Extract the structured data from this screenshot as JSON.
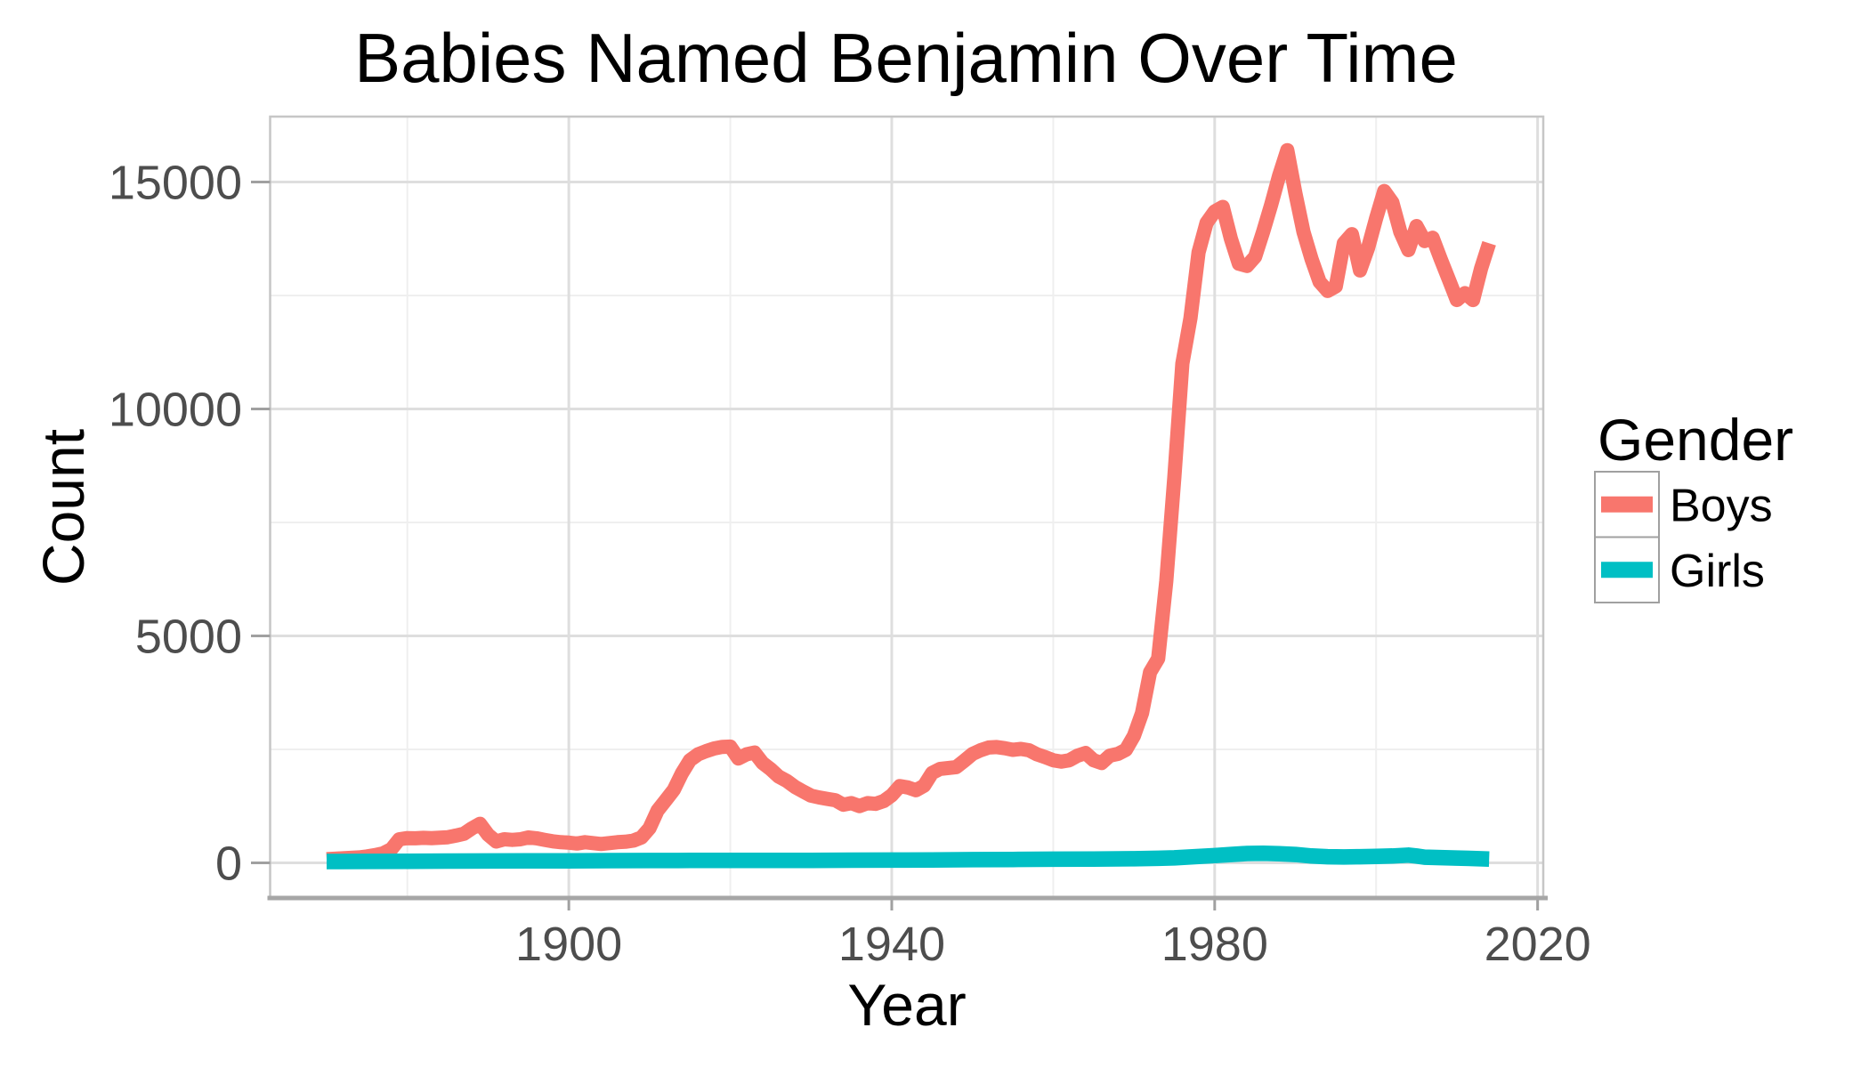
{
  "title": "Babies Named Benjamin Over Time",
  "colors": {
    "boys_line": "#F8766D",
    "girls_line": "#00BFC4",
    "axis_text": "#4D4D4D",
    "title_text": "#000000",
    "grid_major": "#DEDEDE",
    "grid_minor": "#EFEFEF",
    "panel_border": "#C6C6C6",
    "axis_line": "#A6A6A6",
    "background": "#FFFFFF"
  },
  "chart_data": {
    "type": "line",
    "title": "Babies Named Benjamin Over Time",
    "xlabel": "Year",
    "ylabel": "Count",
    "legend_title": "Gender",
    "legend_position": "right",
    "grid": true,
    "x_ticks": [
      1900,
      1940,
      1980,
      2020
    ],
    "x_minor_ticks": [
      1880,
      1920,
      1960,
      2000
    ],
    "y_ticks": [
      0,
      5000,
      10000,
      15000
    ],
    "y_minor_ticks": [
      2500,
      7500,
      12500
    ],
    "xlim": [
      1863.0,
      2020.7
    ],
    "ylim": [
      -765,
      16441
    ],
    "series": [
      {
        "name": "Boys",
        "color": "#F8766D",
        "line_width": 16,
        "points": [
          [
            1870,
            80
          ],
          [
            1871,
            90
          ],
          [
            1872,
            100
          ],
          [
            1873,
            110
          ],
          [
            1874,
            120
          ],
          [
            1875,
            140
          ],
          [
            1876,
            170
          ],
          [
            1877,
            210
          ],
          [
            1878,
            300
          ],
          [
            1879,
            520
          ],
          [
            1880,
            545
          ],
          [
            1881,
            540
          ],
          [
            1882,
            550
          ],
          [
            1883,
            545
          ],
          [
            1884,
            555
          ],
          [
            1885,
            565
          ],
          [
            1886,
            600
          ],
          [
            1887,
            640
          ],
          [
            1888,
            760
          ],
          [
            1889,
            860
          ],
          [
            1890,
            620
          ],
          [
            1891,
            470
          ],
          [
            1892,
            520
          ],
          [
            1893,
            505
          ],
          [
            1894,
            520
          ],
          [
            1895,
            560
          ],
          [
            1896,
            540
          ],
          [
            1897,
            505
          ],
          [
            1898,
            475
          ],
          [
            1899,
            455
          ],
          [
            1900,
            445
          ],
          [
            1901,
            425
          ],
          [
            1902,
            455
          ],
          [
            1903,
            435
          ],
          [
            1904,
            415
          ],
          [
            1905,
            435
          ],
          [
            1906,
            455
          ],
          [
            1907,
            465
          ],
          [
            1908,
            490
          ],
          [
            1909,
            560
          ],
          [
            1910,
            765
          ],
          [
            1911,
            1155
          ],
          [
            1912,
            1380
          ],
          [
            1913,
            1610
          ],
          [
            1914,
            1970
          ],
          [
            1915,
            2260
          ],
          [
            1916,
            2390
          ],
          [
            1917,
            2460
          ],
          [
            1918,
            2520
          ],
          [
            1919,
            2555
          ],
          [
            1920,
            2560
          ],
          [
            1921,
            2300
          ],
          [
            1922,
            2390
          ],
          [
            1923,
            2430
          ],
          [
            1924,
            2200
          ],
          [
            1925,
            2065
          ],
          [
            1926,
            1900
          ],
          [
            1927,
            1805
          ],
          [
            1928,
            1675
          ],
          [
            1929,
            1575
          ],
          [
            1930,
            1480
          ],
          [
            1931,
            1440
          ],
          [
            1932,
            1410
          ],
          [
            1933,
            1380
          ],
          [
            1934,
            1280
          ],
          [
            1935,
            1315
          ],
          [
            1936,
            1250
          ],
          [
            1937,
            1315
          ],
          [
            1938,
            1300
          ],
          [
            1939,
            1360
          ],
          [
            1940,
            1490
          ],
          [
            1941,
            1690
          ],
          [
            1942,
            1660
          ],
          [
            1943,
            1600
          ],
          [
            1944,
            1700
          ],
          [
            1945,
            1980
          ],
          [
            1946,
            2070
          ],
          [
            1947,
            2090
          ],
          [
            1948,
            2110
          ],
          [
            1949,
            2250
          ],
          [
            1950,
            2400
          ],
          [
            1951,
            2480
          ],
          [
            1952,
            2540
          ],
          [
            1953,
            2550
          ],
          [
            1954,
            2525
          ],
          [
            1955,
            2490
          ],
          [
            1956,
            2510
          ],
          [
            1957,
            2480
          ],
          [
            1958,
            2390
          ],
          [
            1959,
            2330
          ],
          [
            1960,
            2260
          ],
          [
            1961,
            2230
          ],
          [
            1962,
            2260
          ],
          [
            1963,
            2360
          ],
          [
            1964,
            2420
          ],
          [
            1965,
            2260
          ],
          [
            1966,
            2200
          ],
          [
            1967,
            2360
          ],
          [
            1968,
            2400
          ],
          [
            1969,
            2490
          ],
          [
            1970,
            2800
          ],
          [
            1971,
            3300
          ],
          [
            1972,
            4200
          ],
          [
            1973,
            4500
          ],
          [
            1974,
            6200
          ],
          [
            1975,
            8500
          ],
          [
            1976,
            11000
          ],
          [
            1977,
            12000
          ],
          [
            1978,
            13450
          ],
          [
            1979,
            14100
          ],
          [
            1980,
            14350
          ],
          [
            1981,
            14450
          ],
          [
            1982,
            13750
          ],
          [
            1983,
            13200
          ],
          [
            1984,
            13150
          ],
          [
            1985,
            13350
          ],
          [
            1986,
            13900
          ],
          [
            1987,
            14500
          ],
          [
            1988,
            15150
          ],
          [
            1989,
            15700
          ],
          [
            1990,
            14750
          ],
          [
            1991,
            13900
          ],
          [
            1992,
            13300
          ],
          [
            1993,
            12800
          ],
          [
            1994,
            12600
          ],
          [
            1995,
            12700
          ],
          [
            1996,
            13650
          ],
          [
            1997,
            13850
          ],
          [
            1998,
            13050
          ],
          [
            1999,
            13550
          ],
          [
            2000,
            14200
          ],
          [
            2001,
            14800
          ],
          [
            2002,
            14550
          ],
          [
            2003,
            13900
          ],
          [
            2004,
            13500
          ],
          [
            2005,
            14030
          ],
          [
            2006,
            13700
          ],
          [
            2007,
            13770
          ],
          [
            2008,
            13300
          ],
          [
            2009,
            12850
          ],
          [
            2010,
            12400
          ],
          [
            2011,
            12550
          ],
          [
            2012,
            12400
          ],
          [
            2013,
            13100
          ],
          [
            2014,
            13650
          ]
        ]
      },
      {
        "name": "Girls",
        "color": "#00BFC4",
        "line_width": 17.5,
        "points": [
          [
            1870,
            30
          ],
          [
            1875,
            32
          ],
          [
            1880,
            35
          ],
          [
            1885,
            38
          ],
          [
            1890,
            40
          ],
          [
            1895,
            42
          ],
          [
            1900,
            45
          ],
          [
            1905,
            48
          ],
          [
            1910,
            50
          ],
          [
            1915,
            52
          ],
          [
            1920,
            55
          ],
          [
            1925,
            55
          ],
          [
            1930,
            55
          ],
          [
            1935,
            58
          ],
          [
            1940,
            60
          ],
          [
            1945,
            65
          ],
          [
            1950,
            70
          ],
          [
            1955,
            75
          ],
          [
            1960,
            80
          ],
          [
            1965,
            85
          ],
          [
            1970,
            90
          ],
          [
            1973,
            100
          ],
          [
            1975,
            110
          ],
          [
            1978,
            140
          ],
          [
            1980,
            160
          ],
          [
            1982,
            185
          ],
          [
            1984,
            205
          ],
          [
            1986,
            210
          ],
          [
            1988,
            200
          ],
          [
            1990,
            185
          ],
          [
            1992,
            150
          ],
          [
            1994,
            135
          ],
          [
            1996,
            130
          ],
          [
            1998,
            135
          ],
          [
            2000,
            140
          ],
          [
            2002,
            150
          ],
          [
            2004,
            170
          ],
          [
            2005,
            150
          ],
          [
            2006,
            125
          ],
          [
            2008,
            115
          ],
          [
            2010,
            105
          ],
          [
            2012,
            95
          ],
          [
            2014,
            85
          ]
        ]
      }
    ]
  }
}
